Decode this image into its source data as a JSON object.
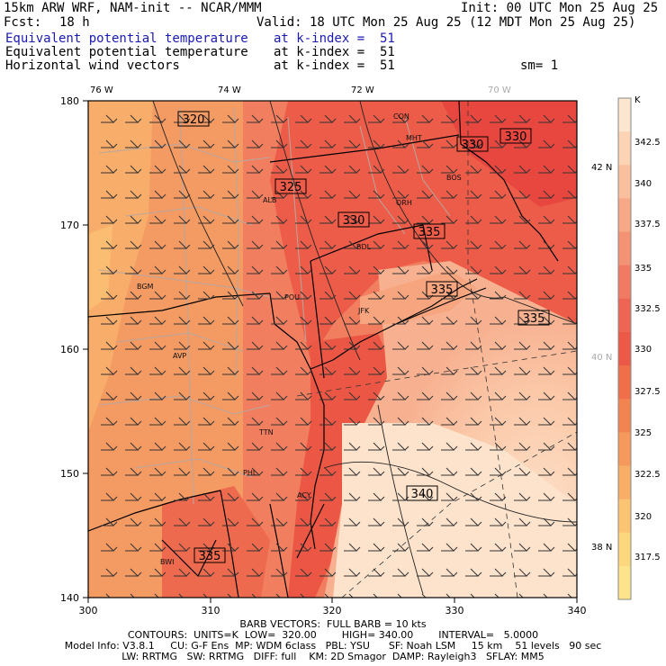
{
  "header": {
    "model": "15km ARW WRF, NAM-init -- NCAR/MMM",
    "init": "Init: 00 UTC Mon 25 Aug 25",
    "fcst_label": "Fcst:",
    "fcst_value": "18 h",
    "valid": "Valid: 18 UTC Mon 25 Aug 25 (12 MDT Mon 25 Aug 25)",
    "fields": [
      {
        "name": "Equivalent potential temperature",
        "level": "at k-index =  51",
        "highlight": true
      },
      {
        "name": "Equivalent potential temperature",
        "level": "at k-index =  51",
        "highlight": false
      },
      {
        "name": "Horizontal wind vectors",
        "level": "at k-index =  51",
        "highlight": false
      }
    ],
    "smoothing": "sm= 1"
  },
  "map": {
    "x_axis_ticks": [
      "300",
      "310",
      "320",
      "330",
      "340"
    ],
    "y_axis_ticks": [
      "140",
      "150",
      "160",
      "170",
      "180"
    ],
    "lon_labels": [
      "76 W",
      "74 W",
      "72 W",
      "70 W"
    ],
    "lat_labels": [
      "42 N",
      "40 N",
      "38 N"
    ],
    "stations": [
      "CON",
      "MHT",
      "BOS",
      "ALB",
      "ORH",
      "BDL",
      "BGM",
      "POU",
      "JFK",
      "AVP",
      "TTN",
      "PHL",
      "ACY",
      "BWI"
    ],
    "contour_labels": [
      "320",
      "325",
      "330",
      "330",
      "330",
      "335",
      "335",
      "335",
      "335",
      "340"
    ]
  },
  "colorbar": {
    "unit": "K",
    "ticks": [
      "342.5",
      "340",
      "337.5",
      "335",
      "332.5",
      "330",
      "327.5",
      "325",
      "322.5",
      "320",
      "317.5"
    ],
    "colors": [
      "#fde6cf",
      "#fcd3b5",
      "#fabf9c",
      "#f7a886",
      "#f49274",
      "#f17a62",
      "#ee6653",
      "#ec5a47",
      "#f06e4a",
      "#f28452",
      "#f5995c",
      "#f8ae66",
      "#fbc472",
      "#fdd77d",
      "#fde38b"
    ]
  },
  "footer": {
    "line1": "BARB VECTORS:  FULL BARB = 10 kts",
    "line2": "CONTOURS:  UNITS=K  LOW=  320.00        HIGH= 340.00        INTERVAL=   5.0000",
    "line3": "Model Info: V3.8.1     CU: G-F Ens  MP: WDM 6class   PBL: YSU      SF: Noah LSM     15 km    51 levels   90 sec",
    "line4": "LW: RRTMG   SW: RRTMG   DIFF: full    KM: 2D Smagor  DAMP: Rayleigh3   SFLAY: MM5"
  }
}
